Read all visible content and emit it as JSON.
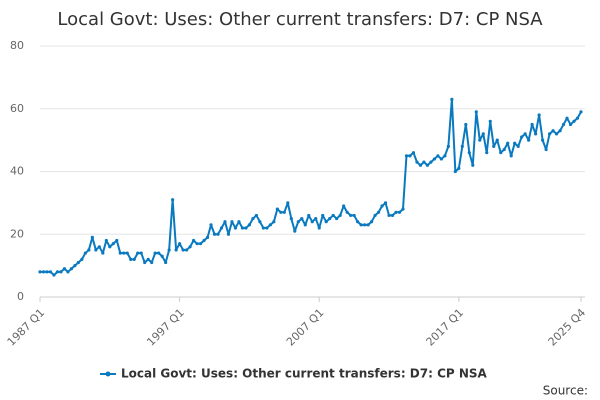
{
  "chart_data": {
    "type": "line",
    "title": "Local Govt: Uses: Other current transfers: D7: CP NSA",
    "source_label": "Source:",
    "categories": [
      "1987 Q1",
      null,
      null,
      null,
      null,
      null,
      null,
      null,
      null,
      null,
      null,
      null,
      null,
      null,
      null,
      null,
      null,
      null,
      null,
      null,
      null,
      null,
      null,
      null,
      null,
      null,
      null,
      null,
      null,
      null,
      null,
      null,
      null,
      null,
      null,
      null,
      null,
      null,
      null,
      null,
      "1997 Q1",
      null,
      null,
      null,
      null,
      null,
      null,
      null,
      null,
      null,
      null,
      null,
      null,
      null,
      null,
      null,
      null,
      null,
      null,
      null,
      null,
      null,
      null,
      null,
      null,
      null,
      null,
      null,
      null,
      null,
      null,
      null,
      null,
      null,
      null,
      null,
      null,
      null,
      null,
      null,
      "2007 Q1",
      null,
      null,
      null,
      null,
      null,
      null,
      null,
      null,
      null,
      null,
      null,
      null,
      null,
      null,
      null,
      null,
      null,
      null,
      null,
      null,
      null,
      null,
      null,
      null,
      null,
      null,
      null,
      null,
      null,
      null,
      null,
      null,
      null,
      null,
      null,
      null,
      null,
      null,
      null,
      "2017 Q1",
      null,
      null,
      null,
      null,
      null,
      null,
      null,
      null,
      null,
      null,
      null,
      null,
      null,
      null,
      null,
      null,
      null,
      null,
      null,
      null,
      null,
      null,
      null,
      null,
      null,
      null,
      null,
      null,
      null,
      null,
      null,
      null,
      null,
      null,
      "2025 Q4"
    ],
    "series": [
      {
        "name": "Local Govt: Uses: Other current transfers: D7: CP NSA",
        "color": "#0a7ac0",
        "values": [
          8,
          8,
          8,
          8,
          7,
          8,
          8,
          9,
          8,
          9,
          10,
          11,
          12,
          14,
          15,
          19,
          15,
          16,
          14,
          18,
          16,
          17,
          18,
          14,
          14,
          14,
          12,
          12,
          14,
          14,
          11,
          12,
          11,
          14,
          14,
          13,
          11,
          15,
          31,
          15,
          17,
          15,
          15,
          16,
          18,
          17,
          17,
          18,
          19,
          23,
          20,
          20,
          22,
          24,
          20,
          24,
          22,
          24,
          22,
          22,
          23,
          25,
          26,
          24,
          22,
          22,
          23,
          24,
          28,
          27,
          27,
          30,
          25,
          21,
          24,
          25,
          23,
          26,
          24,
          25,
          22,
          26,
          24,
          25,
          26,
          25,
          26,
          29,
          27,
          26,
          26,
          24,
          23,
          23,
          23,
          24,
          26,
          27,
          29,
          30,
          26,
          26,
          27,
          27,
          28,
          45,
          45,
          46,
          43,
          42,
          43,
          42,
          43,
          44,
          45,
          44,
          45,
          48,
          63,
          40,
          41,
          48,
          55,
          46,
          42,
          59,
          50,
          52,
          46,
          56,
          48,
          50,
          46,
          47,
          49,
          45,
          49,
          48,
          51,
          52,
          50,
          55,
          52,
          58,
          50,
          47,
          52,
          53,
          52,
          53,
          55,
          57,
          55,
          56,
          57,
          59
        ]
      }
    ],
    "ylim": [
      0,
      80
    ],
    "yticks": [
      0,
      20,
      40,
      60,
      80
    ],
    "grid": true
  }
}
